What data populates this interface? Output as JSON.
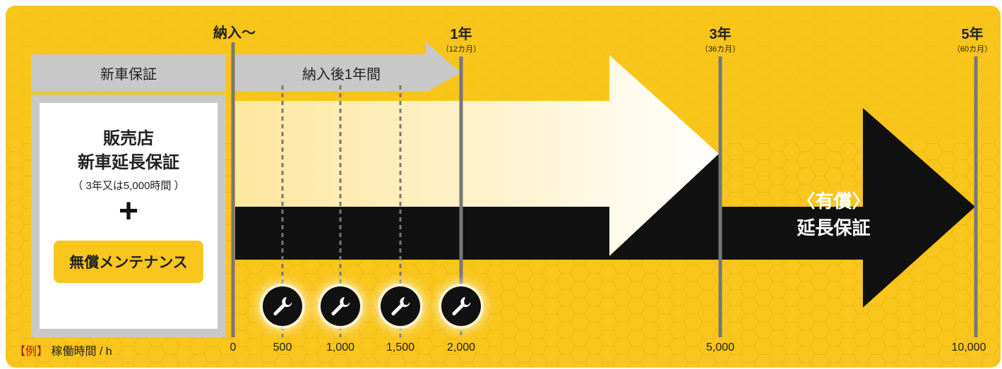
{
  "timeline": {
    "start_label": "納入〜",
    "milestones": [
      {
        "label": "1年",
        "sub": "（12カ月）"
      },
      {
        "label": "3年",
        "sub": "（36カ月）"
      },
      {
        "label": "5年",
        "sub": "（60カ月）"
      }
    ],
    "hours": [
      "0",
      "500",
      "1,000",
      "1,500",
      "2,000",
      "5,000",
      "10,000"
    ],
    "hours_caption_example": "【例】",
    "hours_caption_text": "稼働時間 / h"
  },
  "new_car_warranty": {
    "label": "新車保証",
    "period_label": "納入後1年間"
  },
  "dealer_plan": {
    "title_line1": "販売店",
    "title_line2": "新車延長保証",
    "condition": "（ 3年又は5,000時間 ）",
    "plus": "+",
    "maintenance_label": "無償メンテナンス"
  },
  "paid_extension": {
    "line1": "〈有償〉",
    "line2": "延長保証"
  },
  "icons": {
    "maintenance": "wrench-icon"
  },
  "colors": {
    "background": "#f8c61c",
    "gray": "#c8c8c8",
    "dark": "#111111",
    "white": "#ffffff"
  }
}
